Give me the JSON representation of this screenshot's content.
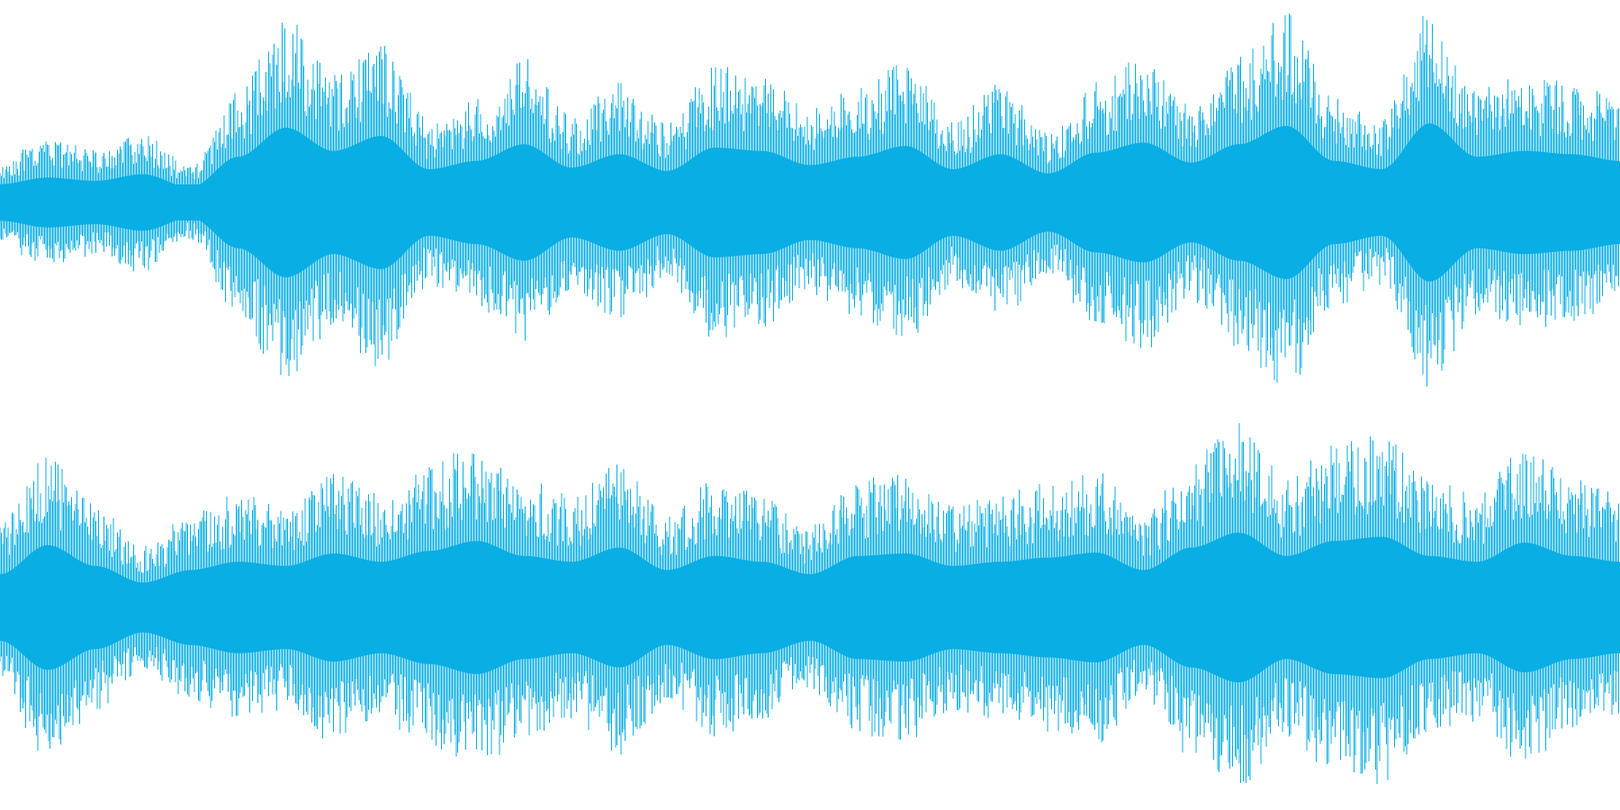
{
  "waveform": {
    "color": "#08AEE4",
    "background": "#FFFFFF",
    "channel_count": 2,
    "channels": [
      {
        "id": "left",
        "envelope_levels": [
          0.22,
          0.3,
          0.26,
          0.34,
          0.18,
          0.55,
          0.9,
          0.62,
          0.8,
          0.4,
          0.5,
          0.7,
          0.42,
          0.58,
          0.38,
          0.66,
          0.62,
          0.45,
          0.55,
          0.68,
          0.4,
          0.58,
          0.35,
          0.6,
          0.72,
          0.48,
          0.7,
          0.92,
          0.5,
          0.4,
          0.95,
          0.55,
          0.62,
          0.58,
          0.5
        ]
      },
      {
        "id": "right",
        "envelope_levels": [
          0.4,
          0.75,
          0.5,
          0.3,
          0.45,
          0.55,
          0.5,
          0.65,
          0.55,
          0.68,
          0.8,
          0.62,
          0.55,
          0.72,
          0.45,
          0.62,
          0.55,
          0.4,
          0.62,
          0.65,
          0.5,
          0.55,
          0.6,
          0.66,
          0.45,
          0.72,
          0.9,
          0.62,
          0.8,
          0.85,
          0.62,
          0.55,
          0.78,
          0.62,
          0.55
        ]
      }
    ]
  }
}
